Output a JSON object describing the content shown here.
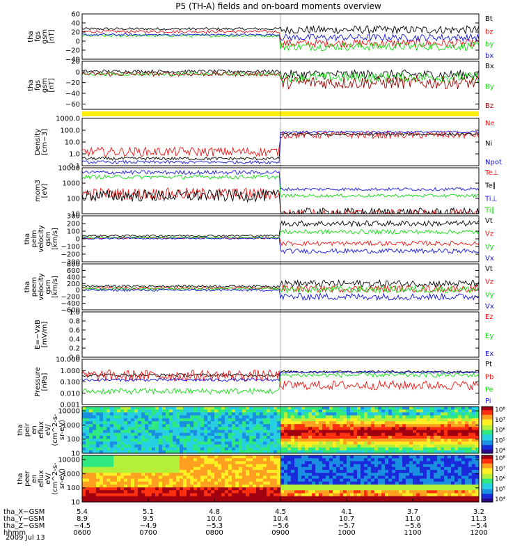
{
  "title": "P5 (TH-A) fields and on-board moments overview",
  "date_label": "2009 Jul 13",
  "colors": {
    "black": "#000000",
    "red": "#ee1111",
    "green": "#11dd11",
    "blue": "#1111dd",
    "darkred": "#990000",
    "yellow": "#ffee00"
  },
  "chart_data": [
    {
      "type": "line",
      "ylabel": [
        "tha",
        "fgs",
        "gsm",
        "[nT]"
      ],
      "ylim": [
        -40,
        60
      ],
      "ylog": false,
      "yticks": [
        "60",
        "40",
        "20",
        "0",
        "−20",
        "−40"
      ],
      "ytick_values": [
        60,
        40,
        20,
        0,
        -20,
        -40
      ],
      "series": [
        {
          "name": "Bt",
          "color": "#000000",
          "pre": 27,
          "post": 25,
          "noise": 6
        },
        {
          "name": "bz",
          "color": "#ee1111",
          "pre": 21,
          "post": -5,
          "noise": 6
        },
        {
          "name": "by",
          "color": "#11dd11",
          "pre": 12,
          "post": -12,
          "noise": 6
        },
        {
          "name": "bx",
          "color": "#1111dd",
          "pre": 14,
          "post": 8,
          "noise": 5
        }
      ]
    },
    {
      "type": "line",
      "ylabel": [
        "tha",
        "fgs",
        "gsm",
        "[nT]"
      ],
      "ylim": [
        -70,
        20
      ],
      "ylog": false,
      "yticks": [
        "20",
        "0",
        "−20",
        "−40",
        "−60"
      ],
      "ytick_values": [
        20,
        0,
        -20,
        -40,
        -60
      ],
      "series": [
        {
          "name": "Bx",
          "color": "#000000",
          "pre": 1,
          "post": -5,
          "noise": 6
        },
        {
          "name": "By",
          "color": "#11dd11",
          "pre": -4,
          "post": -10,
          "noise": 6
        },
        {
          "name": "Bz",
          "color": "#990000",
          "pre": -4,
          "post": -20,
          "noise": 8
        }
      ]
    },
    {
      "type": "band",
      "ylabel": [],
      "color": "#ffee00"
    },
    {
      "type": "line",
      "ylabel": [
        "Density",
        "[cm−3]"
      ],
      "ylim": [
        0.1,
        1000
      ],
      "ylog": true,
      "yticks": [
        "1000.0",
        "100.0",
        "10.0",
        "1.0",
        "0.1"
      ],
      "ytick_values": [
        1000,
        100,
        10,
        1,
        0.1
      ],
      "series": [
        {
          "name": "Ne",
          "color": "#ee1111",
          "pre": 1.5,
          "post": 40,
          "noise": 0.3
        },
        {
          "name": "Ni",
          "color": "#000000",
          "pre": 0.4,
          "post": 45,
          "noise": 0.1
        },
        {
          "name": "Npot",
          "color": "#1111dd",
          "pre": 0.2,
          "post": 70,
          "noise": 0.1
        }
      ]
    },
    {
      "type": "line",
      "ylabel": [
        "mom3",
        "[eV]"
      ],
      "ylim": [
        10,
        10000
      ],
      "ylog": true,
      "yticks": [
        "10000",
        "1000",
        "100",
        "10"
      ],
      "ytick_values": [
        10000,
        1000,
        100,
        10
      ],
      "series": [
        {
          "name": "Te⊥",
          "color": "#ee1111",
          "pre": 200,
          "post": 10,
          "noise": 0.3
        },
        {
          "name": "Te∥",
          "color": "#000000",
          "pre": 150,
          "post": 12,
          "noise": 0.3
        },
        {
          "name": "Ti⊥",
          "color": "#1111dd",
          "pre": 5000,
          "post": 400,
          "noise": 0.1
        },
        {
          "name": "Ti∥",
          "color": "#11dd11",
          "pre": 2500,
          "post": 150,
          "noise": 0.1
        }
      ]
    },
    {
      "type": "line",
      "ylabel": [
        "tha",
        "peim",
        "velocity",
        "gsm",
        "[km/s]"
      ],
      "ylim": [
        -300,
        300
      ],
      "ylog": false,
      "yticks": [
        "300",
        "200",
        "100",
        "0",
        "−100",
        "−200",
        "−300"
      ],
      "ytick_values": [
        300,
        200,
        100,
        0,
        -100,
        -200,
        -300
      ],
      "series": [
        {
          "name": "Vt",
          "color": "#000000",
          "pre": 40,
          "post": 200,
          "noise": 25
        },
        {
          "name": "Vz",
          "color": "#ee1111",
          "pre": 10,
          "post": -60,
          "noise": 20
        },
        {
          "name": "Vy",
          "color": "#11dd11",
          "pre": 15,
          "post": 90,
          "noise": 20
        },
        {
          "name": "Vx",
          "color": "#1111dd",
          "pre": 5,
          "post": -160,
          "noise": 20
        }
      ]
    },
    {
      "type": "line",
      "ylabel": [
        "tha",
        "peem",
        "velocity",
        "gsm",
        "[km/s]"
      ],
      "ylim": [
        -600,
        800
      ],
      "ylog": false,
      "yticks": [
        "800",
        "600",
        "400",
        "200",
        "0",
        "−200",
        "−400",
        "−600"
      ],
      "ytick_values": [
        800,
        600,
        400,
        200,
        0,
        -200,
        -400,
        -600
      ],
      "series": [
        {
          "name": "Vt",
          "color": "#000000",
          "pre": 120,
          "post": 200,
          "noise": 70
        },
        {
          "name": "Vz",
          "color": "#ee1111",
          "pre": 60,
          "post": 40,
          "noise": 70
        },
        {
          "name": "Vy",
          "color": "#11dd11",
          "pre": 40,
          "post": 20,
          "noise": 70
        },
        {
          "name": "Vx",
          "color": "#1111dd",
          "pre": 0,
          "post": -200,
          "noise": 70
        }
      ]
    },
    {
      "type": "line",
      "ylabel": [
        "E=−VxB",
        "[mV/m]"
      ],
      "ylim": [
        0,
        1
      ],
      "ylog": false,
      "yticks": [
        "1.0",
        "0.8",
        "0.6",
        "0.4",
        "0.2",
        "0.0"
      ],
      "ytick_values": [
        1,
        0.8,
        0.6,
        0.4,
        0.2,
        0
      ],
      "series": [
        {
          "name": "Ez",
          "color": "#ee1111",
          "empty": true
        },
        {
          "name": "Ey",
          "color": "#11dd11",
          "empty": true
        },
        {
          "name": "Ex",
          "color": "#1111dd",
          "empty": true
        }
      ]
    },
    {
      "type": "line",
      "ylabel": [
        "Pressure",
        "[nPa]"
      ],
      "ylim": [
        0.001,
        10
      ],
      "ylog": true,
      "yticks": [
        "10.000",
        "1.000",
        "0.100",
        "0.010",
        "0.001"
      ],
      "ytick_values": [
        10,
        1,
        0.1,
        0.01,
        0.001
      ],
      "series": [
        {
          "name": "Pt",
          "color": "#000000",
          "pre": 0.4,
          "post": 0.8,
          "noise": 0.1
        },
        {
          "name": "Pb",
          "color": "#ee1111",
          "pre": 0.35,
          "post": 0.05,
          "noise": 0.4
        },
        {
          "name": "Pe",
          "color": "#11dd11",
          "pre": 0.015,
          "post": 0.4,
          "noise": 0.2
        },
        {
          "name": "Pi",
          "color": "#1111dd",
          "pre": 0.15,
          "post": 0.7,
          "noise": 0.1
        }
      ]
    },
    {
      "type": "heatmap",
      "ylabel": [
        "tha",
        "peir",
        "en",
        "eflux",
        "eV/",
        "(cm^2-s-",
        "sr-eV)"
      ],
      "ylim": [
        10,
        20000
      ],
      "ylog": true,
      "yticks": [
        "10000",
        "1000",
        "100",
        "10"
      ],
      "ytick_values": [
        10000,
        1000,
        100,
        10
      ],
      "colorbar_ticks": [
        "10⁸",
        "10⁷",
        "10⁶",
        "10⁵",
        "10⁴"
      ],
      "pattern": "ion"
    },
    {
      "type": "heatmap",
      "ylabel": [
        "tha",
        "peer",
        "en",
        "eflux",
        "eV/",
        "(cm^2-s-",
        "sr-eV)"
      ],
      "ylim": [
        10,
        20000
      ],
      "ylog": true,
      "yticks": [
        "10000",
        "1000",
        "100",
        "10"
      ],
      "ytick_values": [
        10000,
        1000,
        100,
        10
      ],
      "colorbar_ticks": [
        "10⁸",
        "10⁷",
        "10⁶",
        "10⁵",
        "10⁴"
      ],
      "pattern": "electron"
    }
  ],
  "xaxis": {
    "row_labels": [
      "tha_X−GSM",
      "tha_Y−GSM",
      "tha_Z−GSM",
      "hhmm"
    ],
    "columns": [
      [
        "5.4",
        "8.9",
        "−4.5",
        "0600"
      ],
      [
        "5.1",
        "9.5",
        "−4.9",
        "0700"
      ],
      [
        "4.8",
        "10.0",
        "−5.3",
        "0800"
      ],
      [
        "4.5",
        "10.4",
        "−5.6",
        "0900"
      ],
      [
        "4.1",
        "10.7",
        "−5.7",
        "1000"
      ],
      [
        "3.7",
        "11.0",
        "−5.6",
        "1100"
      ],
      [
        "3.2",
        "11.3",
        "−5.4",
        "1200"
      ]
    ],
    "time_range": [
      "0600",
      "1200"
    ],
    "transition_time": "0900"
  }
}
